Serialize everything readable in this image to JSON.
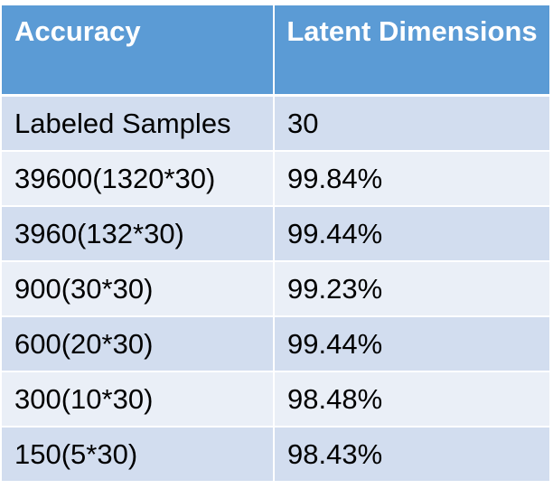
{
  "chart_data": {
    "type": "table",
    "columns": [
      "Accuracy",
      "Latent Dimensions"
    ],
    "rows": [
      [
        "Labeled Samples",
        "30"
      ],
      [
        "39600(1320*30)",
        "99.84%"
      ],
      [
        "3960(132*30)",
        "99.44%"
      ],
      [
        "900(30*30)",
        "99.23%"
      ],
      [
        "600(20*30)",
        "99.44%"
      ],
      [
        "300(10*30)",
        "98.48%"
      ],
      [
        "150(5*30)",
        "98.43%"
      ]
    ]
  },
  "colors": {
    "header_bg": "#5b9bd5",
    "row_dark": "#d2ddef",
    "row_light": "#eaeff7",
    "header_text": "#ffffff"
  }
}
